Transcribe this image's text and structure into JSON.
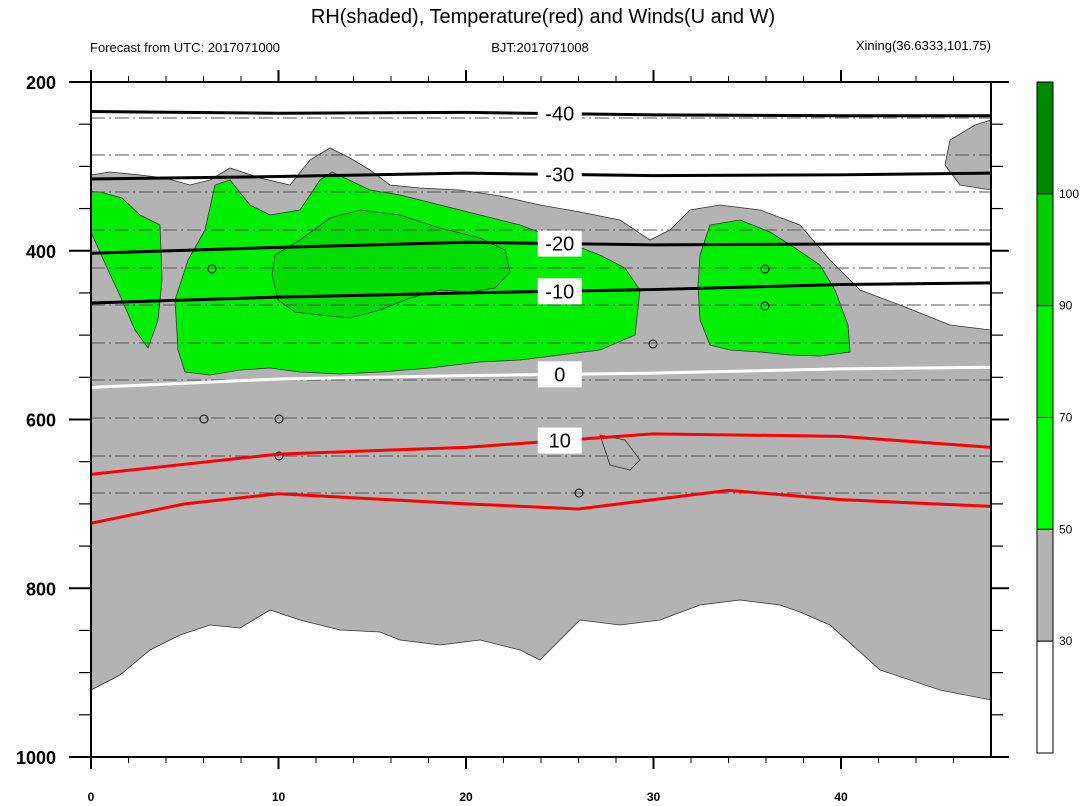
{
  "title": "RH(shaded), Temperature(red) and Winds(U and W)",
  "left_string": "Forecast from UTC: 2017071000",
  "center_string": "BJT:2017071008",
  "right_string": "Xining(36.6333,101.75)",
  "colors": {
    "rh_30_50": "#b3b3b3",
    "rh_50_70": "#00ff00",
    "rh_70_90": "#00dd00",
    "temperature": "#ff0000",
    "isotherm_negative": "#000000",
    "freezing_level": "#ffffff"
  },
  "chart_data": {
    "type": "contour",
    "title": "RH(shaded), Temperature(red) and Winds(U and W)",
    "xlabel": "",
    "ylabel": "",
    "xlim": [
      0,
      48
    ],
    "ylim": [
      1000,
      200
    ],
    "x_ticks": [
      "0",
      "10",
      "20",
      "30",
      "40"
    ],
    "x_tick_values": [
      0,
      10,
      20,
      30,
      40
    ],
    "y_ticks": [
      "200",
      "400",
      "600",
      "800",
      "1000"
    ],
    "y_tick_values": [
      200,
      400,
      600,
      800,
      1000
    ],
    "colorbar": {
      "levels": [
        "30",
        "50",
        "70",
        "90",
        "100"
      ],
      "level_values": [
        30,
        50,
        70,
        90,
        100
      ],
      "colors": [
        "#ffffff",
        "#b3b3b3",
        "#00ff00",
        "#00ee00",
        "#00cc00",
        "#008800"
      ]
    },
    "isotherms": [
      {
        "value": -40,
        "label": "-40",
        "points": [
          [
            0,
            235
          ],
          [
            10,
            237
          ],
          [
            20,
            236
          ],
          [
            30,
            239
          ],
          [
            40,
            240
          ],
          [
            48,
            240
          ]
        ]
      },
      {
        "value": -30,
        "label": "-30",
        "points": [
          [
            0,
            315
          ],
          [
            10,
            312
          ],
          [
            20,
            308
          ],
          [
            30,
            311
          ],
          [
            40,
            310
          ],
          [
            48,
            308
          ]
        ]
      },
      {
        "value": -20,
        "label": "-20",
        "points": [
          [
            0,
            403
          ],
          [
            10,
            396
          ],
          [
            20,
            390
          ],
          [
            30,
            393
          ],
          [
            40,
            392
          ],
          [
            48,
            392
          ]
        ]
      },
      {
        "value": -10,
        "label": "-10",
        "points": [
          [
            0,
            462
          ],
          [
            10,
            455
          ],
          [
            20,
            450
          ],
          [
            30,
            446
          ],
          [
            40,
            440
          ],
          [
            48,
            438
          ]
        ]
      },
      {
        "value": 0,
        "label": "0",
        "points": [
          [
            0,
            562
          ],
          [
            10,
            552
          ],
          [
            20,
            548
          ],
          [
            30,
            545
          ],
          [
            40,
            540
          ],
          [
            48,
            538
          ]
        ]
      },
      {
        "value": 10,
        "label": "10",
        "points": [
          [
            0,
            665
          ],
          [
            10,
            641
          ],
          [
            20,
            633
          ],
          [
            30,
            617
          ],
          [
            40,
            620
          ],
          [
            48,
            633
          ]
        ]
      },
      {
        "value": 20,
        "label": "",
        "points": [
          [
            0,
            723
          ],
          [
            5,
            700
          ],
          [
            10,
            688
          ],
          [
            20,
            700
          ],
          [
            26,
            706
          ],
          [
            34,
            684
          ],
          [
            40,
            695
          ],
          [
            48,
            703
          ]
        ]
      }
    ],
    "rh_regions": [
      {
        "level": "30-50",
        "note": "gray"
      },
      {
        "level": "50-70",
        "note": "green"
      },
      {
        "level": "70-90",
        "note": "green"
      }
    ]
  }
}
